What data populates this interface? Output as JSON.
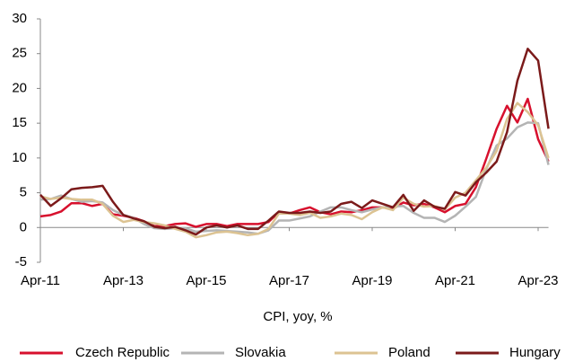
{
  "chart_data": {
    "type": "line",
    "xlabel": "CPI, yoy, %",
    "x": [
      "Apr-11",
      "Jul-11",
      "Oct-11",
      "Jan-12",
      "Apr-12",
      "Jul-12",
      "Oct-12",
      "Jan-13",
      "Apr-13",
      "Jul-13",
      "Oct-13",
      "Jan-14",
      "Apr-14",
      "Jul-14",
      "Oct-14",
      "Jan-15",
      "Apr-15",
      "Jul-15",
      "Oct-15",
      "Jan-16",
      "Apr-16",
      "Jul-16",
      "Oct-16",
      "Jan-17",
      "Apr-17",
      "Jul-17",
      "Oct-17",
      "Jan-18",
      "Apr-18",
      "Jul-18",
      "Oct-18",
      "Jan-19",
      "Apr-19",
      "Jul-19",
      "Oct-19",
      "Jan-20",
      "Apr-20",
      "Jul-20",
      "Oct-20",
      "Jan-21",
      "Apr-21",
      "Jul-21",
      "Oct-21",
      "Jan-22",
      "Apr-22",
      "Jul-22",
      "Oct-22",
      "Jan-23",
      "Apr-23",
      "Jul-23"
    ],
    "xticks": [
      "Apr-11",
      "Apr-13",
      "Apr-15",
      "Apr-17",
      "Apr-19",
      "Apr-21",
      "Apr-23"
    ],
    "ylim": [
      -5,
      30
    ],
    "yticks": [
      -5,
      0,
      5,
      10,
      15,
      20,
      25,
      30
    ],
    "series": [
      {
        "name": "Czech Republic",
        "color": "#d7102d",
        "values": [
          1.6,
          1.8,
          2.3,
          3.5,
          3.5,
          3.1,
          3.4,
          1.9,
          1.7,
          1.4,
          0.9,
          0.2,
          0.2,
          0.5,
          0.6,
          0.1,
          0.5,
          0.5,
          0.2,
          0.5,
          0.5,
          0.5,
          0.8,
          2.2,
          2.0,
          2.5,
          2.9,
          2.2,
          1.9,
          2.3,
          2.2,
          2.5,
          2.9,
          2.9,
          2.7,
          3.6,
          3.2,
          3.4,
          2.9,
          2.2,
          3.1,
          3.4,
          5.8,
          9.9,
          14.2,
          17.5,
          15.1,
          18.5,
          12.7,
          9.5
        ]
      },
      {
        "name": "Slovakia",
        "color": "#b4b4b4",
        "values": [
          4.0,
          4.1,
          4.6,
          4.1,
          3.7,
          3.8,
          3.6,
          2.5,
          1.8,
          1.4,
          0.5,
          -0.1,
          -0.2,
          -0.1,
          -0.1,
          -0.6,
          -0.5,
          -0.4,
          -0.5,
          -0.6,
          -0.7,
          -0.9,
          -0.4,
          1.0,
          1.0,
          1.3,
          1.6,
          2.3,
          2.9,
          2.9,
          2.5,
          2.2,
          2.6,
          2.9,
          3.0,
          3.1,
          2.1,
          1.4,
          1.4,
          0.8,
          1.7,
          3.0,
          4.4,
          8.4,
          11.8,
          12.8,
          14.4,
          15.1,
          15.0,
          9.0
        ]
      },
      {
        "name": "Poland",
        "color": "#dcc392",
        "values": [
          4.5,
          4.1,
          4.3,
          4.1,
          4.0,
          4.0,
          3.4,
          1.7,
          0.8,
          1.1,
          0.8,
          0.6,
          0.3,
          -0.2,
          -0.6,
          -1.4,
          -1.1,
          -0.7,
          -0.6,
          -0.8,
          -1.1,
          -0.9,
          -0.2,
          2.0,
          2.0,
          1.8,
          2.1,
          1.4,
          1.6,
          2.0,
          1.8,
          1.2,
          2.2,
          2.9,
          2.5,
          4.3,
          3.4,
          3.0,
          3.1,
          2.6,
          4.3,
          5.0,
          6.8,
          8.6,
          11.0,
          15.6,
          17.9,
          16.6,
          14.7,
          10.0
        ]
      },
      {
        "name": "Hungary",
        "color": "#7b1a1a",
        "values": [
          4.7,
          3.1,
          4.2,
          5.5,
          5.7,
          5.8,
          6.0,
          3.7,
          1.8,
          1.3,
          0.9,
          0.1,
          -0.1,
          0.1,
          -0.4,
          -1.0,
          0.0,
          0.3,
          0.0,
          0.3,
          -0.2,
          -0.2,
          1.0,
          2.3,
          2.1,
          2.1,
          2.3,
          2.1,
          2.3,
          3.4,
          3.7,
          2.8,
          3.9,
          3.4,
          2.9,
          4.7,
          2.4,
          3.9,
          3.0,
          2.7,
          5.1,
          4.6,
          6.5,
          7.9,
          9.5,
          13.7,
          21.1,
          25.7,
          24.0,
          14.2
        ]
      }
    ]
  }
}
